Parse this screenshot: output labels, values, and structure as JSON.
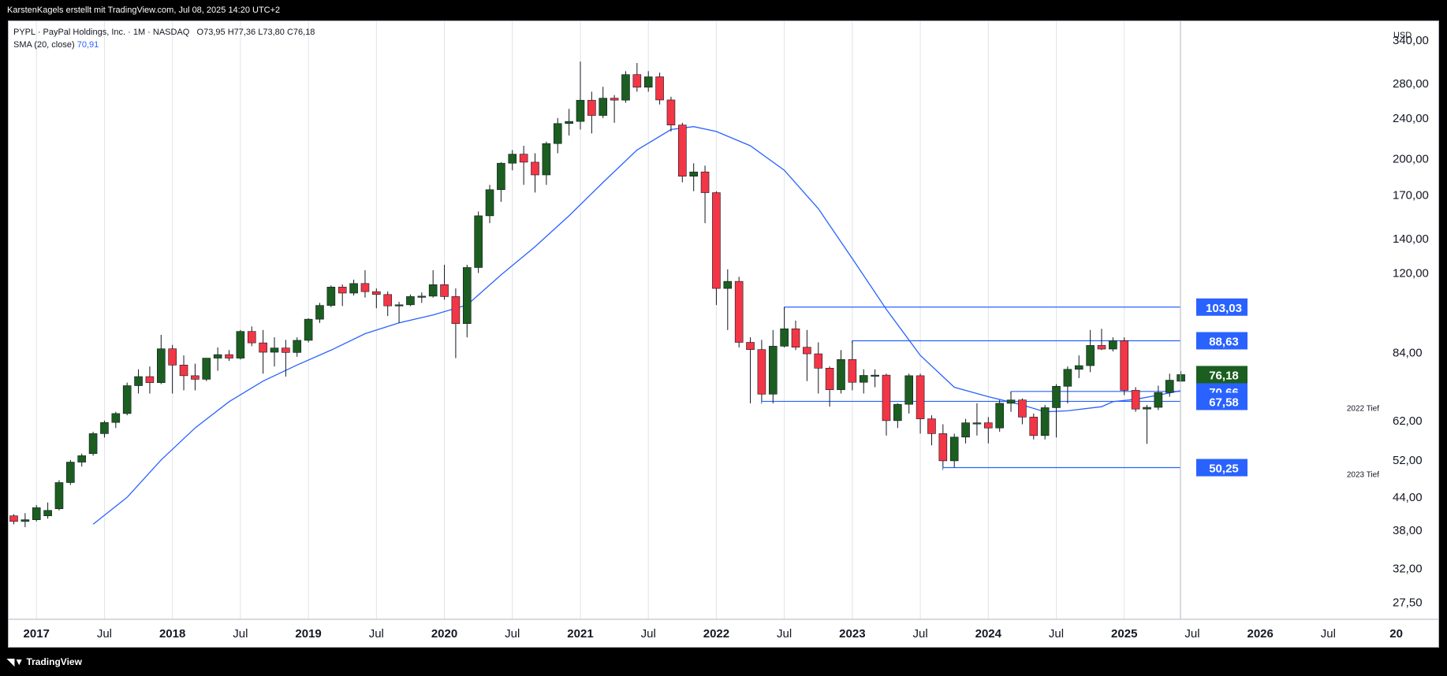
{
  "header": {
    "attribution": "KarstenKagels erstellt mit TradingView.com, Jul 08, 2025 14:20 UTC+2"
  },
  "legend": {
    "symbol_line": "PYPL · PayPal Holdings, Inc. · 1M · NASDAQ",
    "ohlc": {
      "open": "O73,95",
      "high": "H77,36",
      "low": "L73,80",
      "close": "C76,18"
    },
    "sma_label": "SMA (20, close)",
    "sma_value": "70,91"
  },
  "footer": {
    "brand": "TradingView"
  },
  "colors": {
    "up": "#1b5e20",
    "down": "#f23645",
    "sma": "#2962ff",
    "level": "#2962ff",
    "grid": "#e0e3eb",
    "last_price_bg": "#1b5e20"
  },
  "chart_data": {
    "type": "candlestick",
    "symbol": "PYPL",
    "interval": "1M",
    "currency": "USD",
    "scale": "log",
    "ylim": [
      25.5,
      370
    ],
    "y_ticks": [
      "340,00",
      "280,00",
      "240,00",
      "200,00",
      "170,00",
      "140,00",
      "120,00",
      "84,00",
      "62,00",
      "52,00",
      "44,00",
      "38,00",
      "32,00",
      "27,50"
    ],
    "y_tick_values": [
      340,
      280,
      240,
      200,
      170,
      140,
      120,
      84,
      62,
      52,
      44,
      38,
      32,
      27.5
    ],
    "x_ticks": [
      {
        "label": "2017",
        "date": "2017-01",
        "bold": true
      },
      {
        "label": "Jul",
        "date": "2017-07",
        "bold": false
      },
      {
        "label": "2018",
        "date": "2018-01",
        "bold": true
      },
      {
        "label": "Jul",
        "date": "2018-07",
        "bold": false
      },
      {
        "label": "2019",
        "date": "2019-01",
        "bold": true
      },
      {
        "label": "Jul",
        "date": "2019-07",
        "bold": false
      },
      {
        "label": "2020",
        "date": "2020-01",
        "bold": true
      },
      {
        "label": "Jul",
        "date": "2020-07",
        "bold": false
      },
      {
        "label": "2021",
        "date": "2021-01",
        "bold": true
      },
      {
        "label": "Jul",
        "date": "2021-07",
        "bold": false
      },
      {
        "label": "2022",
        "date": "2022-01",
        "bold": true
      },
      {
        "label": "Jul",
        "date": "2022-07",
        "bold": false
      },
      {
        "label": "2023",
        "date": "2023-01",
        "bold": true
      },
      {
        "label": "Jul",
        "date": "2023-07",
        "bold": false
      },
      {
        "label": "2024",
        "date": "2024-01",
        "bold": true
      },
      {
        "label": "Jul",
        "date": "2024-07",
        "bold": false
      },
      {
        "label": "2025",
        "date": "2025-01",
        "bold": true
      },
      {
        "label": "Jul",
        "date": "2025-07",
        "bold": false
      },
      {
        "label": "2026",
        "date": "2026-01",
        "bold": true
      },
      {
        "label": "Jul",
        "date": "2026-07",
        "bold": false
      },
      {
        "label": "20",
        "date": "2027-01",
        "bold": true
      }
    ],
    "x_start": "2016-12",
    "ohlc": [
      [
        "2016-12",
        40.5,
        40.8,
        39.0,
        39.5
      ],
      [
        "2017-01",
        39.5,
        41.0,
        38.5,
        39.8
      ],
      [
        "2017-02",
        39.8,
        42.5,
        39.5,
        42.0
      ],
      [
        "2017-03",
        40.5,
        43.0,
        40.0,
        41.5
      ],
      [
        "2017-04",
        41.8,
        47.5,
        41.5,
        47.0
      ],
      [
        "2017-05",
        47.0,
        52.0,
        46.5,
        51.5
      ],
      [
        "2017-06",
        51.5,
        53.5,
        50.5,
        53.0
      ],
      [
        "2017-07",
        53.5,
        59.0,
        53.0,
        58.5
      ],
      [
        "2017-08",
        58.5,
        62.0,
        57.5,
        61.5
      ],
      [
        "2017-09",
        61.5,
        64.5,
        60.0,
        64.0
      ],
      [
        "2017-10",
        64.0,
        73.5,
        63.5,
        72.5
      ],
      [
        "2017-11",
        72.5,
        78.0,
        70.0,
        75.5
      ],
      [
        "2017-12",
        75.5,
        79.0,
        70.0,
        73.5
      ],
      [
        "2018-01",
        73.5,
        91.0,
        73.0,
        85.5
      ],
      [
        "2018-02",
        85.5,
        87.0,
        70.0,
        79.5
      ],
      [
        "2018-03",
        79.5,
        83.0,
        71.0,
        75.8
      ],
      [
        "2018-04",
        75.8,
        80.0,
        71.0,
        74.6
      ],
      [
        "2018-05",
        74.6,
        82.0,
        74.0,
        82.0
      ],
      [
        "2018-06",
        82.0,
        86.0,
        77.5,
        83.3
      ],
      [
        "2018-07",
        83.3,
        85.0,
        81.0,
        82.0
      ],
      [
        "2018-08",
        82.0,
        93.0,
        81.5,
        92.4
      ],
      [
        "2018-09",
        92.4,
        94.5,
        86.5,
        87.8
      ],
      [
        "2018-10",
        87.8,
        93.0,
        76.5,
        84.2
      ],
      [
        "2018-11",
        84.2,
        90.0,
        79.0,
        85.8
      ],
      [
        "2018-12",
        85.8,
        89.0,
        75.5,
        84.1
      ],
      [
        "2019-01",
        84.1,
        90.0,
        82.5,
        88.8
      ],
      [
        "2019-02",
        88.8,
        98.0,
        88.0,
        97.6
      ],
      [
        "2019-03",
        97.6,
        105.0,
        96.0,
        103.8
      ],
      [
        "2019-04",
        103.8,
        113.5,
        103.0,
        112.7
      ],
      [
        "2019-05",
        112.7,
        114.0,
        103.5,
        109.7
      ],
      [
        "2019-06",
        109.7,
        116.5,
        108.5,
        114.5
      ],
      [
        "2019-07",
        114.5,
        121.5,
        107.5,
        110.4
      ],
      [
        "2019-08",
        110.4,
        112.0,
        102.5,
        109.0
      ],
      [
        "2019-09",
        109.0,
        110.5,
        99.0,
        103.6
      ],
      [
        "2019-10",
        103.6,
        105.5,
        96.0,
        104.1
      ],
      [
        "2019-11",
        104.1,
        109.0,
        103.5,
        108.0
      ],
      [
        "2019-12",
        108.0,
        110.0,
        105.0,
        108.2
      ],
      [
        "2020-01",
        108.2,
        121.5,
        107.5,
        113.9
      ],
      [
        "2020-02",
        113.9,
        124.5,
        106.5,
        108.0
      ],
      [
        "2020-03",
        108.0,
        112.0,
        82.0,
        95.7
      ],
      [
        "2020-04",
        95.7,
        124.5,
        90.0,
        123.0
      ],
      [
        "2020-05",
        123.0,
        158.0,
        120.0,
        155.0
      ],
      [
        "2020-06",
        155.0,
        178.0,
        150.0,
        174.2
      ],
      [
        "2020-07",
        174.2,
        197.0,
        165.0,
        196.1
      ],
      [
        "2020-08",
        196.1,
        208.0,
        190.0,
        204.2
      ],
      [
        "2020-09",
        204.2,
        212.0,
        178.0,
        197.0
      ],
      [
        "2020-10",
        197.0,
        205.0,
        172.0,
        186.1
      ],
      [
        "2020-11",
        186.1,
        216.0,
        178.0,
        214.1
      ],
      [
        "2020-12",
        214.1,
        240.0,
        205.0,
        234.2
      ],
      [
        "2021-01",
        234.2,
        250.0,
        222.0,
        236.4
      ],
      [
        "2021-02",
        236.4,
        309.0,
        228.0,
        259.9
      ],
      [
        "2021-03",
        259.9,
        270.0,
        224.0,
        242.8
      ],
      [
        "2021-04",
        242.8,
        276.0,
        240.0,
        262.3
      ],
      [
        "2021-05",
        262.3,
        266.0,
        235.0,
        260.0
      ],
      [
        "2021-06",
        260.0,
        296.0,
        257.0,
        291.5
      ],
      [
        "2021-07",
        291.5,
        307.0,
        270.0,
        275.5
      ],
      [
        "2021-08",
        275.5,
        296.0,
        270.0,
        288.6
      ],
      [
        "2021-09",
        288.6,
        294.0,
        255.0,
        260.2
      ],
      [
        "2021-10",
        260.2,
        264.0,
        226.0,
        232.6
      ],
      [
        "2021-11",
        232.6,
        235.0,
        180.0,
        185.0
      ],
      [
        "2021-12",
        185.0,
        196.0,
        173.0,
        188.6
      ],
      [
        "2022-01",
        188.6,
        194.0,
        150.0,
        171.9
      ],
      [
        "2022-02",
        171.9,
        173.0,
        104.0,
        112.0
      ],
      [
        "2022-03",
        112.0,
        122.0,
        93.0,
        115.6
      ],
      [
        "2022-04",
        115.6,
        118.0,
        86.0,
        88.0
      ],
      [
        "2022-05",
        88.0,
        90.0,
        67.0,
        85.2
      ],
      [
        "2022-06",
        85.2,
        89.0,
        67.6,
        69.8
      ],
      [
        "2022-07",
        69.8,
        93.0,
        67.0,
        86.5
      ],
      [
        "2022-08",
        86.5,
        103.0,
        86.0,
        93.5
      ],
      [
        "2022-09",
        93.5,
        97.0,
        85.0,
        86.1
      ],
      [
        "2022-10",
        86.1,
        93.0,
        74.0,
        83.6
      ],
      [
        "2022-11",
        83.6,
        88.0,
        70.0,
        78.4
      ],
      [
        "2022-12",
        78.4,
        79.0,
        66.0,
        71.2
      ],
      [
        "2023-01",
        71.2,
        85.0,
        70.0,
        81.5
      ],
      [
        "2023-02",
        81.5,
        88.6,
        71.0,
        73.6
      ],
      [
        "2023-03",
        73.6,
        78.0,
        70.0,
        75.9
      ],
      [
        "2023-04",
        75.9,
        78.0,
        72.0,
        76.0
      ],
      [
        "2023-05",
        76.0,
        76.5,
        58.0,
        62.0
      ],
      [
        "2023-06",
        62.0,
        67.0,
        60.0,
        66.7
      ],
      [
        "2023-07",
        66.7,
        76.5,
        64.0,
        75.8
      ],
      [
        "2023-08",
        75.8,
        76.5,
        58.5,
        62.5
      ],
      [
        "2023-09",
        62.5,
        63.5,
        55.5,
        58.5
      ],
      [
        "2023-10",
        58.5,
        61.0,
        50.3,
        51.8
      ],
      [
        "2023-11",
        51.8,
        58.5,
        50.3,
        57.6
      ],
      [
        "2023-12",
        57.6,
        62.5,
        56.0,
        61.4
      ],
      [
        "2024-01",
        61.4,
        67.0,
        58.0,
        61.4
      ],
      [
        "2024-02",
        61.4,
        63.0,
        56.0,
        60.0
      ],
      [
        "2024-03",
        60.0,
        68.0,
        59.0,
        67.0
      ],
      [
        "2024-04",
        67.0,
        70.5,
        64.5,
        68.0
      ],
      [
        "2024-05",
        68.0,
        68.5,
        61.0,
        63.0
      ],
      [
        "2024-06",
        63.0,
        64.0,
        57.0,
        58.0
      ],
      [
        "2024-07",
        58.0,
        66.5,
        57.0,
        65.7
      ],
      [
        "2024-08",
        65.7,
        73.0,
        57.5,
        72.3
      ],
      [
        "2024-09",
        72.3,
        79.0,
        67.0,
        78.0
      ],
      [
        "2024-10",
        78.0,
        83.0,
        75.0,
        79.3
      ],
      [
        "2024-11",
        79.3,
        93.0,
        77.0,
        86.8
      ],
      [
        "2024-12",
        86.8,
        93.5,
        85.0,
        85.4
      ],
      [
        "2025-01",
        85.4,
        90.0,
        84.5,
        88.6
      ],
      [
        "2025-02",
        88.6,
        90.0,
        69.5,
        71.0
      ],
      [
        "2025-03",
        71.0,
        72.0,
        64.5,
        65.3
      ],
      [
        "2025-04",
        65.3,
        66.5,
        55.9,
        65.8
      ],
      [
        "2025-05",
        65.8,
        72.5,
        65.0,
        70.3
      ],
      [
        "2025-06",
        70.3,
        76.5,
        69.0,
        74.3
      ],
      [
        "2025-07",
        73.95,
        77.36,
        73.8,
        76.18
      ]
    ],
    "sma": {
      "name": "SMA (20, close)",
      "points": [
        [
          "2017-07",
          39.0
        ],
        [
          "2017-10",
          44.0
        ],
        [
          "2018-01",
          52.0
        ],
        [
          "2018-04",
          60.0
        ],
        [
          "2018-07",
          67.5
        ],
        [
          "2018-10",
          74.0
        ],
        [
          "2019-01",
          79.5
        ],
        [
          "2019-04",
          85.0
        ],
        [
          "2019-07",
          91.5
        ],
        [
          "2019-10",
          96.0
        ],
        [
          "2020-01",
          99.5
        ],
        [
          "2020-04",
          104.0
        ],
        [
          "2020-07",
          119.0
        ],
        [
          "2020-10",
          135.0
        ],
        [
          "2021-01",
          155.0
        ],
        [
          "2021-04",
          180.0
        ],
        [
          "2021-07",
          208.0
        ],
        [
          "2021-10",
          228.0
        ],
        [
          "2021-12",
          231.0
        ],
        [
          "2022-02",
          226.0
        ],
        [
          "2022-05",
          212.0
        ],
        [
          "2022-08",
          190.0
        ],
        [
          "2022-11",
          160.0
        ],
        [
          "2023-02",
          128.0
        ],
        [
          "2023-05",
          102.0
        ],
        [
          "2023-08",
          83.0
        ],
        [
          "2023-11",
          72.0
        ],
        [
          "2024-02",
          69.0
        ],
        [
          "2024-05",
          66.5
        ],
        [
          "2024-07",
          64.5
        ],
        [
          "2024-09",
          64.8
        ],
        [
          "2024-12",
          66.0
        ],
        [
          "2025-01",
          67.5
        ],
        [
          "2025-03",
          68.2
        ],
        [
          "2025-05",
          69.5
        ],
        [
          "2025-07",
          70.91
        ]
      ]
    },
    "levels": [
      {
        "value": 103.03,
        "label": "103,03",
        "from": "2022-08"
      },
      {
        "value": 88.63,
        "label": "88,63",
        "from": "2023-02"
      },
      {
        "value": 70.66,
        "label": "70,66",
        "from": "2024-04"
      },
      {
        "value": 67.58,
        "label": "67,58",
        "from": "2022-06",
        "note": "2022 Tief"
      },
      {
        "value": 50.25,
        "label": "50,25",
        "from": "2023-10",
        "note": "2023 Tief"
      }
    ],
    "last_price": {
      "value": 76.18,
      "label": "76,18"
    }
  }
}
